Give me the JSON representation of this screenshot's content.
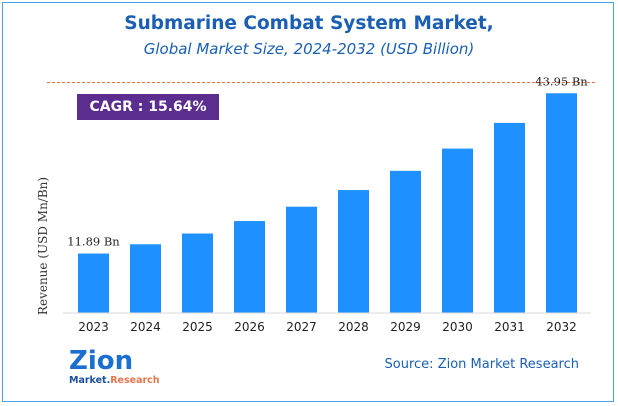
{
  "title": "Submarine Combat System Market,",
  "subtitle": "Global Market Size, 2024-2032 (USD Billion)",
  "cagr": "CAGR :  15.64%",
  "source": "Source: Zion Market Research",
  "logo": {
    "main": "Zion",
    "sub_part1": "Market.",
    "sub_part2": "Research"
  },
  "colors": {
    "bar": "#1e90ff",
    "title": "#1a5fb4",
    "cagr_bg": "#5b2d8e",
    "divider": "#e8744a"
  },
  "chart_data": {
    "type": "bar",
    "categories": [
      "2023",
      "2024",
      "2025",
      "2026",
      "2027",
      "2028",
      "2029",
      "2030",
      "2031",
      "2032"
    ],
    "values": [
      11.89,
      13.75,
      15.9,
      18.39,
      21.26,
      24.59,
      28.43,
      32.88,
      38.02,
      43.95
    ],
    "data_labels": [
      {
        "index": 0,
        "text": "11.89 Bn"
      },
      {
        "index": 9,
        "text": "43.95 Bn"
      }
    ],
    "ylabel": "Revenue (USD Mn/Bn)",
    "xlabel": "",
    "ylim": [
      0,
      50
    ],
    "grid": false
  }
}
